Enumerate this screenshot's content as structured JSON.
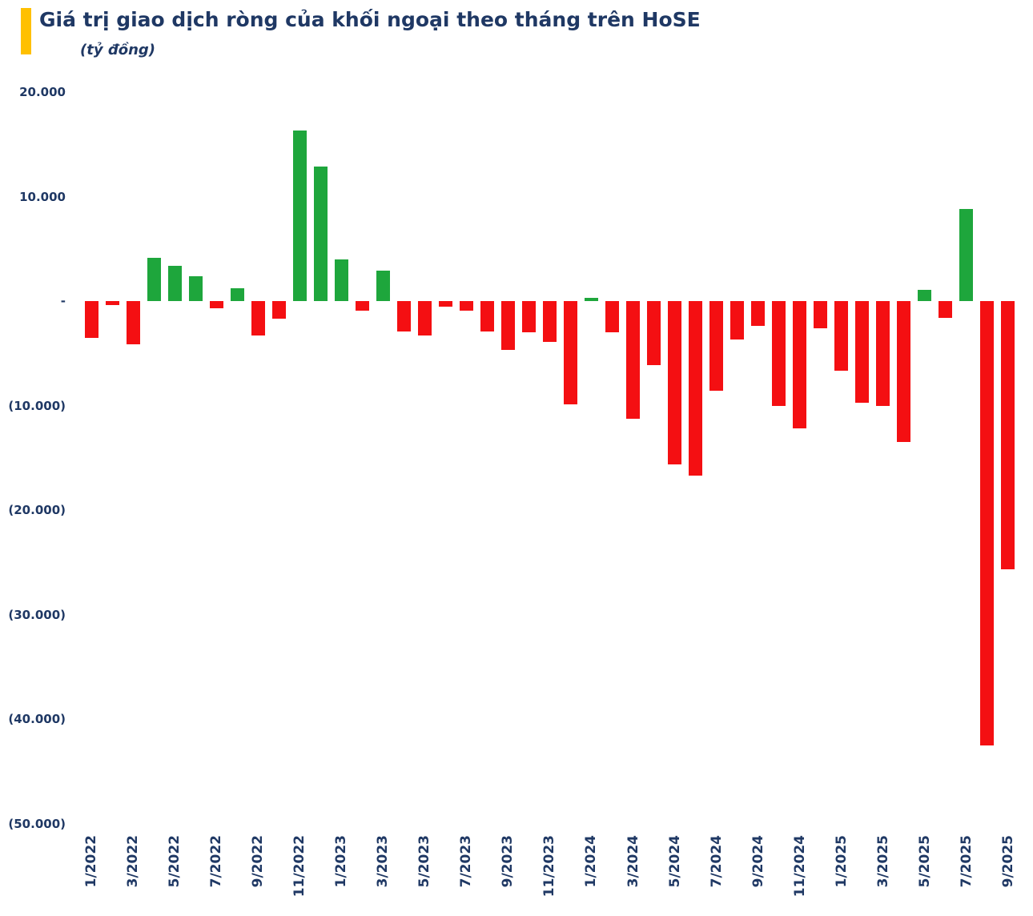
{
  "title": "Giá trị giao dịch ròng của khối ngoại theo tháng trên HoSE",
  "subtitle": "(tỷ đồng)",
  "colors": {
    "accent": "#FFC000",
    "text": "#1F3864",
    "positive": "#1EA63C",
    "negative": "#F40F12"
  },
  "chart_data": {
    "type": "bar",
    "title": "Giá trị giao dịch ròng của khối ngoại theo tháng trên HoSE",
    "unit": "tỷ đồng",
    "ylim": [
      -50000,
      20000
    ],
    "grid": false,
    "legend": "none",
    "y_ticks": [
      20000,
      10000,
      0,
      -10000,
      -20000,
      -30000,
      -40000,
      -50000
    ],
    "y_tick_labels": [
      "20.000",
      "10.000",
      "-",
      "(10.000)",
      "(20.000)",
      "(30.000)",
      "(40.000)",
      "(50.000)"
    ],
    "x_tick_every": 2,
    "categories": [
      "1/2022",
      "2/2022",
      "3/2022",
      "4/2022",
      "5/2022",
      "6/2022",
      "7/2022",
      "8/2022",
      "9/2022",
      "10/2022",
      "11/2022",
      "12/2022",
      "1/2023",
      "2/2023",
      "3/2023",
      "4/2023",
      "5/2023",
      "6/2023",
      "7/2023",
      "8/2023",
      "9/2023",
      "10/2023",
      "11/2023",
      "12/2023",
      "1/2024",
      "2/2024",
      "3/2024",
      "4/2024",
      "5/2024",
      "6/2024",
      "7/2024",
      "8/2024",
      "9/2024",
      "10/2024",
      "11/2024",
      "12/2024",
      "1/2025",
      "2/2025",
      "3/2025",
      "4/2025",
      "5/2025",
      "6/2025",
      "7/2025",
      "8/2025",
      "9/2025"
    ],
    "values": [
      -3500,
      -400,
      -4100,
      4100,
      3400,
      2400,
      -700,
      1200,
      -3300,
      -1700,
      16300,
      12900,
      4000,
      -900,
      2900,
      -2900,
      -3300,
      -500,
      -900,
      -2900,
      -4700,
      -3000,
      -3900,
      -9900,
      300,
      -3000,
      -11300,
      -6100,
      -15600,
      -16700,
      -8600,
      -3700,
      -2400,
      -10000,
      -12200,
      -2600,
      -6700,
      -9700,
      -10000,
      -13500,
      1100,
      -1600,
      8800,
      -42500,
      -25700
    ]
  }
}
